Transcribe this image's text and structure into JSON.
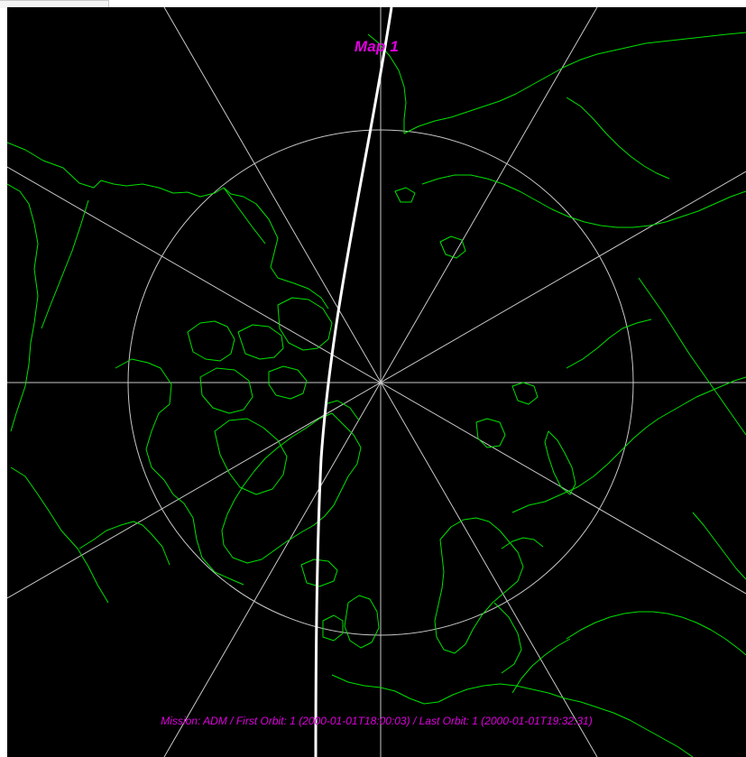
{
  "map": {
    "title": "Map 1",
    "caption": "Mission: ADM / First Orbit: 1 (2000-01-01T18:00:03) / Last Orbit: 1 (2000-01-01T19:32:31)",
    "projection": "polar-stereographic-north",
    "graticule": {
      "meridian_count": 12,
      "latitude_circle_visible": true
    },
    "colors": {
      "background": "#000000",
      "coastlines": "#00e000",
      "graticule": "#c8c8c8",
      "ground_track": "#ffffff",
      "labels": "#e000e0"
    },
    "layers": [
      "coastlines",
      "graticule",
      "ground-track"
    ]
  }
}
